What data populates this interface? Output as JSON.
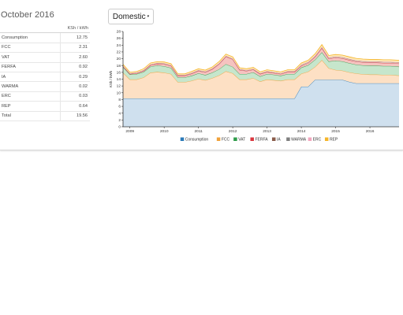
{
  "header": {
    "title": "October 2016"
  },
  "tariff_selector": {
    "label": "Domestic",
    "caret": "▾"
  },
  "breakdown": {
    "unit": "KSh / kWh",
    "rows": [
      {
        "name": "Consumption",
        "value": "12.75"
      },
      {
        "name": "FCC",
        "value": "2.31"
      },
      {
        "name": "VAT",
        "value": "2.60"
      },
      {
        "name": "FERFA",
        "value": "0.92"
      },
      {
        "name": "IA",
        "value": "0.29"
      },
      {
        "name": "WARMA",
        "value": "0.02"
      },
      {
        "name": "ERC",
        "value": "0.03"
      },
      {
        "name": "REP",
        "value": "0.64"
      },
      {
        "name": "Total",
        "value": "19.56"
      }
    ]
  },
  "chart_data": {
    "type": "area",
    "stacked": true,
    "ylabel": "KSh / kWh",
    "xlabel": "",
    "ylim": [
      0,
      28
    ],
    "xlim": [
      2008.8,
      2016.85
    ],
    "y_ticks": [
      0,
      2,
      4,
      6,
      8,
      10,
      12,
      14,
      16,
      18,
      20,
      22,
      24,
      26,
      28
    ],
    "x_ticks": [
      {
        "label": "2009",
        "value": 2009
      },
      {
        "label": "2010",
        "value": 2010
      },
      {
        "label": "2011",
        "value": 2011
      },
      {
        "label": "2012",
        "value": 2012
      },
      {
        "label": "2013",
        "value": 2013
      },
      {
        "label": "2014",
        "value": 2014
      },
      {
        "label": "2015",
        "value": 2015
      },
      {
        "label": "2016",
        "value": 2016
      }
    ],
    "legend_position": "bottom",
    "grid": false,
    "x": [
      2008.8,
      2009.0,
      2009.2,
      2009.4,
      2009.6,
      2009.8,
      2010.0,
      2010.2,
      2010.4,
      2010.6,
      2010.8,
      2011.0,
      2011.2,
      2011.4,
      2011.6,
      2011.8,
      2012.0,
      2012.2,
      2012.4,
      2012.6,
      2012.8,
      2013.0,
      2013.2,
      2013.4,
      2013.6,
      2013.8,
      2014.0,
      2014.2,
      2014.4,
      2014.6,
      2014.8,
      2015.0,
      2015.2,
      2015.4,
      2015.6,
      2015.8,
      2016.0,
      2016.2,
      2016.4,
      2016.6,
      2016.85
    ],
    "series": [
      {
        "name": "Consumption",
        "color": "#2a7ab8",
        "fill": "#cfe0ee",
        "values": [
          8.3,
          8.3,
          8.3,
          8.3,
          8.3,
          8.3,
          8.3,
          8.3,
          8.3,
          8.3,
          8.3,
          8.3,
          8.3,
          8.3,
          8.3,
          8.3,
          8.3,
          8.3,
          8.3,
          8.3,
          8.3,
          8.3,
          8.3,
          8.3,
          8.3,
          8.3,
          11.8,
          11.8,
          13.8,
          13.8,
          13.8,
          13.8,
          13.8,
          13.2,
          12.75,
          12.75,
          12.75,
          12.75,
          12.75,
          12.75,
          12.75
        ]
      },
      {
        "name": "FCC",
        "color": "#f0a23a",
        "fill": "#fde0c4",
        "values": [
          7.6,
          5.6,
          5.6,
          6.2,
          7.6,
          7.8,
          7.6,
          7.2,
          4.8,
          4.8,
          5.2,
          5.8,
          5.4,
          6.0,
          6.8,
          8.0,
          7.4,
          5.6,
          5.6,
          6.0,
          5.0,
          5.6,
          5.4,
          5.2,
          5.6,
          5.6,
          3.8,
          4.4,
          3.8,
          5.8,
          3.4,
          2.9,
          2.7,
          2.8,
          2.9,
          2.7,
          2.6,
          2.6,
          2.5,
          2.5,
          2.31
        ]
      },
      {
        "name": "VAT",
        "color": "#2e9c4a",
        "fill": "#c6e6cc",
        "values": [
          1.7,
          1.5,
          1.6,
          1.6,
          1.8,
          1.9,
          1.9,
          1.8,
          1.4,
          1.4,
          1.5,
          1.6,
          1.5,
          1.6,
          1.8,
          2.1,
          1.9,
          1.6,
          1.6,
          1.7,
          1.5,
          1.6,
          1.6,
          1.5,
          1.6,
          1.6,
          1.8,
          1.9,
          2.1,
          2.3,
          2.0,
          2.7,
          2.7,
          2.7,
          2.6,
          2.6,
          2.6,
          2.6,
          2.6,
          2.6,
          2.6
        ]
      },
      {
        "name": "FERFA",
        "color": "#d9363e",
        "fill": "#f5c3c0",
        "values": [
          0.1,
          0.1,
          0.2,
          0.3,
          0.4,
          0.5,
          0.6,
          0.6,
          0.5,
          0.5,
          0.6,
          0.7,
          0.8,
          1.0,
          1.5,
          2.2,
          2.2,
          1.2,
          0.9,
          0.8,
          0.7,
          0.6,
          0.5,
          0.5,
          0.6,
          0.6,
          0.5,
          0.6,
          0.8,
          1.2,
          0.8,
          0.9,
          0.9,
          0.9,
          0.9,
          0.9,
          0.9,
          0.9,
          0.9,
          0.9,
          0.92
        ]
      },
      {
        "name": "IA",
        "color": "#8a5c4a",
        "fill": "#e0cfc8",
        "values": [
          0.2,
          0.2,
          0.2,
          0.2,
          0.2,
          0.2,
          0.2,
          0.2,
          0.2,
          0.2,
          0.2,
          0.2,
          0.2,
          0.2,
          0.2,
          0.2,
          0.2,
          0.2,
          0.2,
          0.2,
          0.2,
          0.2,
          0.2,
          0.2,
          0.2,
          0.2,
          0.3,
          0.3,
          0.3,
          0.3,
          0.3,
          0.3,
          0.3,
          0.3,
          0.3,
          0.3,
          0.3,
          0.3,
          0.3,
          0.3,
          0.29
        ]
      },
      {
        "name": "WARMA",
        "color": "#7f7f7f",
        "fill": "#dedede",
        "values": [
          0.02,
          0.02,
          0.02,
          0.02,
          0.02,
          0.02,
          0.02,
          0.02,
          0.02,
          0.02,
          0.02,
          0.02,
          0.02,
          0.02,
          0.02,
          0.02,
          0.02,
          0.02,
          0.02,
          0.02,
          0.02,
          0.02,
          0.02,
          0.02,
          0.02,
          0.02,
          0.02,
          0.02,
          0.02,
          0.02,
          0.02,
          0.02,
          0.02,
          0.02,
          0.02,
          0.02,
          0.02,
          0.02,
          0.02,
          0.02,
          0.02
        ]
      },
      {
        "name": "ERC",
        "color": "#f2a6bd",
        "fill": "#f9dbe4",
        "values": [
          0.03,
          0.03,
          0.03,
          0.03,
          0.03,
          0.03,
          0.03,
          0.03,
          0.03,
          0.03,
          0.03,
          0.03,
          0.03,
          0.03,
          0.03,
          0.03,
          0.03,
          0.03,
          0.03,
          0.03,
          0.03,
          0.03,
          0.03,
          0.03,
          0.03,
          0.03,
          0.03,
          0.03,
          0.03,
          0.03,
          0.03,
          0.03,
          0.03,
          0.03,
          0.03,
          0.03,
          0.03,
          0.03,
          0.03,
          0.03,
          0.03
        ]
      },
      {
        "name": "REP",
        "color": "#f5b52a",
        "fill": "#fde8b8",
        "values": [
          0.4,
          0.3,
          0.3,
          0.4,
          0.4,
          0.4,
          0.4,
          0.4,
          0.3,
          0.3,
          0.4,
          0.4,
          0.4,
          0.4,
          0.5,
          0.5,
          0.5,
          0.4,
          0.4,
          0.4,
          0.4,
          0.4,
          0.4,
          0.4,
          0.4,
          0.4,
          0.5,
          0.5,
          0.6,
          0.7,
          0.6,
          0.6,
          0.6,
          0.6,
          0.6,
          0.6,
          0.6,
          0.6,
          0.6,
          0.6,
          0.64
        ]
      }
    ]
  }
}
